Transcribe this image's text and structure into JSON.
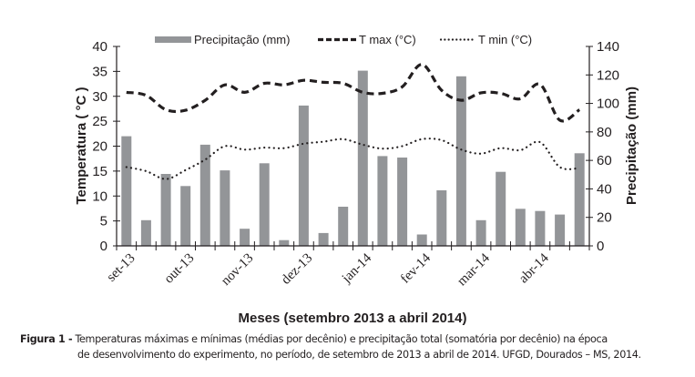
{
  "chart_data": {
    "type": "bar+line",
    "title": "",
    "xlabel": "Meses (setembro 2013 a abril 2014)",
    "ylabel_left": "Temperatura ( °C )",
    "ylabel_right": "Precipitação (mm)",
    "ylim_left": [
      0,
      40
    ],
    "ylim_right": [
      0,
      140
    ],
    "yticks_left": [
      "0",
      "5",
      "10",
      "15",
      "20",
      "25",
      "30",
      "35",
      "40"
    ],
    "yticks_right": [
      "0",
      "20",
      "40",
      "60",
      "80",
      "100",
      "120",
      "140"
    ],
    "month_labels": [
      "set-13",
      "out-13",
      "nov-13",
      "dez-13",
      "jan-14",
      "fev-14",
      "mar-14",
      "abr-14"
    ],
    "periods_per_month": 3,
    "grid": false,
    "legend_position": "top",
    "legend": [
      {
        "key": "precip",
        "label": "Precipitação (mm)"
      },
      {
        "key": "tmax",
        "label": "T max (°C)"
      },
      {
        "key": "tmin",
        "label": "T min (°C)"
      }
    ],
    "series": [
      {
        "name": "Precipitação (mm)",
        "kind": "bar",
        "axis": "right",
        "color": "#939598",
        "values": [
          77,
          18,
          50.5,
          42,
          71,
          53,
          12,
          58,
          4,
          98.5,
          9,
          27.5,
          123,
          63,
          62,
          8,
          39,
          119,
          18,
          52,
          26,
          24.5,
          22,
          65
        ]
      },
      {
        "name": "T max (°C)",
        "kind": "line",
        "style": "dashed",
        "axis": "left",
        "color": "#231f20",
        "values": [
          30.8,
          30.2,
          27.3,
          27.2,
          29.2,
          32.3,
          30.8,
          32.6,
          32.3,
          33.2,
          32.8,
          32.6,
          30.8,
          30.6,
          31.9,
          36.4,
          31.2,
          29.2,
          30.7,
          30.6,
          29.5,
          32.4,
          25.2,
          27.3
        ]
      },
      {
        "name": "T min (°C)",
        "kind": "line",
        "style": "dotted",
        "axis": "left",
        "color": "#231f20",
        "values": [
          15.8,
          15.0,
          13.4,
          15.2,
          17.3,
          20.0,
          19.3,
          19.7,
          19.6,
          20.5,
          20.9,
          21.4,
          20.3,
          19.5,
          20.0,
          21.4,
          21.2,
          19.3,
          18.5,
          19.6,
          19.2,
          20.8,
          15.8,
          15.6
        ]
      }
    ]
  },
  "caption": {
    "label": "Figura 1 -",
    "line1": " Temperaturas máximas e mínimas (médias por decênio) e precipitação total (somatória por decênio) na época",
    "line2": "de desenvolvimento do experimento, no período, de setembro de 2013 a abril de 2014. UFGD, Dourados – MS, 2014."
  }
}
